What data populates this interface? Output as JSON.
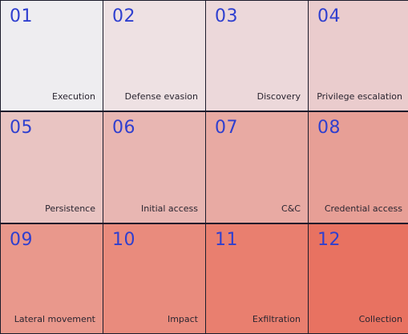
{
  "tiles": [
    {
      "number": "01",
      "label": "Execution",
      "color": "#eeedf0"
    },
    {
      "number": "02",
      "label": "Defense evasion",
      "color": "#eee1e3"
    },
    {
      "number": "03",
      "label": "Discovery",
      "color": "#ecd8da"
    },
    {
      "number": "04",
      "label": "Privilege escalation",
      "color": "#eacccd"
    },
    {
      "number": "05",
      "label": "Persistence",
      "color": "#e9c4c2"
    },
    {
      "number": "06",
      "label": "Initial access",
      "color": "#e8b6b2"
    },
    {
      "number": "07",
      "label": "C&C",
      "color": "#e8aaa3"
    },
    {
      "number": "08",
      "label": "Credential access",
      "color": "#e79f96"
    },
    {
      "number": "09",
      "label": "Lateral movement",
      "color": "#e9988c"
    },
    {
      "number": "10",
      "label": "Impact",
      "color": "#e98b7d"
    },
    {
      "number": "11",
      "label": "Exfiltration",
      "color": "#e97f6f"
    },
    {
      "number": "12",
      "label": "Collection",
      "color": "#e87261"
    }
  ],
  "number_color": "#2f3fcf",
  "background_color": "#1b1b2b"
}
